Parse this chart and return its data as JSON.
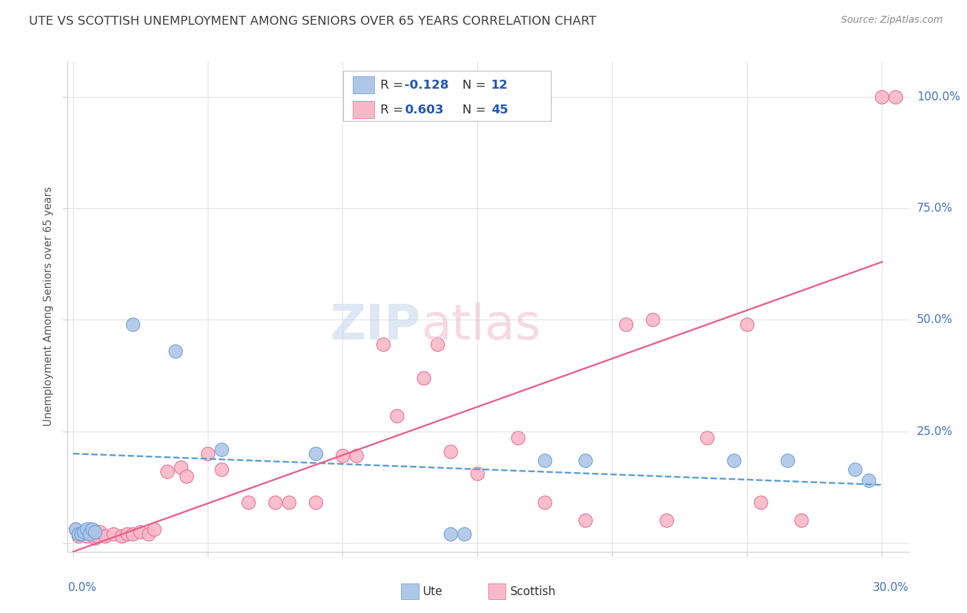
{
  "title": "UTE VS SCOTTISH UNEMPLOYMENT AMONG SENIORS OVER 65 YEARS CORRELATION CHART",
  "source": "Source: ZipAtlas.com",
  "ylabel": "Unemployment Among Seniors over 65 years",
  "ute_color": "#aec6e8",
  "scottish_color": "#f9b8c8",
  "ute_edge_color": "#5b9bd5",
  "scottish_edge_color": "#e8608a",
  "ute_line_color": "#5b9bd5",
  "scottish_line_color": "#e8608a",
  "title_color": "#404040",
  "source_color": "#888888",
  "axis_label_color": "#4472c4",
  "background_color": "#ffffff",
  "grid_color": "#dde3ea",
  "ute_points": [
    [
      0.001,
      0.03
    ],
    [
      0.002,
      0.02
    ],
    [
      0.003,
      0.02
    ],
    [
      0.004,
      0.025
    ],
    [
      0.005,
      0.03
    ],
    [
      0.006,
      0.02
    ],
    [
      0.007,
      0.03
    ],
    [
      0.008,
      0.025
    ],
    [
      0.022,
      0.49
    ],
    [
      0.038,
      0.43
    ],
    [
      0.055,
      0.21
    ],
    [
      0.09,
      0.2
    ],
    [
      0.14,
      0.02
    ],
    [
      0.145,
      0.02
    ],
    [
      0.175,
      0.185
    ],
    [
      0.19,
      0.185
    ],
    [
      0.245,
      0.185
    ],
    [
      0.265,
      0.185
    ],
    [
      0.29,
      0.165
    ],
    [
      0.295,
      0.14
    ]
  ],
  "scottish_points": [
    [
      0.001,
      0.03
    ],
    [
      0.002,
      0.015
    ],
    [
      0.003,
      0.02
    ],
    [
      0.004,
      0.025
    ],
    [
      0.005,
      0.015
    ],
    [
      0.006,
      0.03
    ],
    [
      0.007,
      0.02
    ],
    [
      0.008,
      0.01
    ],
    [
      0.009,
      0.015
    ],
    [
      0.01,
      0.025
    ],
    [
      0.012,
      0.015
    ],
    [
      0.015,
      0.02
    ],
    [
      0.018,
      0.015
    ],
    [
      0.02,
      0.02
    ],
    [
      0.022,
      0.02
    ],
    [
      0.025,
      0.025
    ],
    [
      0.028,
      0.02
    ],
    [
      0.03,
      0.03
    ],
    [
      0.035,
      0.16
    ],
    [
      0.04,
      0.17
    ],
    [
      0.042,
      0.15
    ],
    [
      0.05,
      0.2
    ],
    [
      0.055,
      0.165
    ],
    [
      0.065,
      0.09
    ],
    [
      0.075,
      0.09
    ],
    [
      0.08,
      0.09
    ],
    [
      0.09,
      0.09
    ],
    [
      0.1,
      0.195
    ],
    [
      0.105,
      0.195
    ],
    [
      0.115,
      0.445
    ],
    [
      0.12,
      0.285
    ],
    [
      0.13,
      0.37
    ],
    [
      0.135,
      0.445
    ],
    [
      0.14,
      0.205
    ],
    [
      0.15,
      0.155
    ],
    [
      0.165,
      0.235
    ],
    [
      0.175,
      0.09
    ],
    [
      0.19,
      0.05
    ],
    [
      0.205,
      0.49
    ],
    [
      0.215,
      0.5
    ],
    [
      0.22,
      0.05
    ],
    [
      0.235,
      0.235
    ],
    [
      0.25,
      0.49
    ],
    [
      0.255,
      0.09
    ],
    [
      0.27,
      0.05
    ],
    [
      0.3,
      1.0
    ],
    [
      0.305,
      1.0
    ]
  ],
  "ute_regression": [
    0.0,
    0.2,
    0.3,
    0.13
  ],
  "scottish_regression": [
    0.0,
    -0.02,
    0.3,
    0.63
  ],
  "xlim": [
    -0.002,
    0.31
  ],
  "ylim": [
    -0.02,
    1.08
  ],
  "yticks": [
    0.0,
    0.25,
    0.5,
    0.75,
    1.0
  ],
  "xticks": [
    0.0,
    0.05,
    0.1,
    0.15,
    0.2,
    0.25,
    0.3
  ],
  "right_ylabels": [
    [
      1.0,
      "100.0%"
    ],
    [
      0.75,
      "75.0%"
    ],
    [
      0.5,
      "50.0%"
    ],
    [
      0.25,
      "25.0%"
    ]
  ]
}
